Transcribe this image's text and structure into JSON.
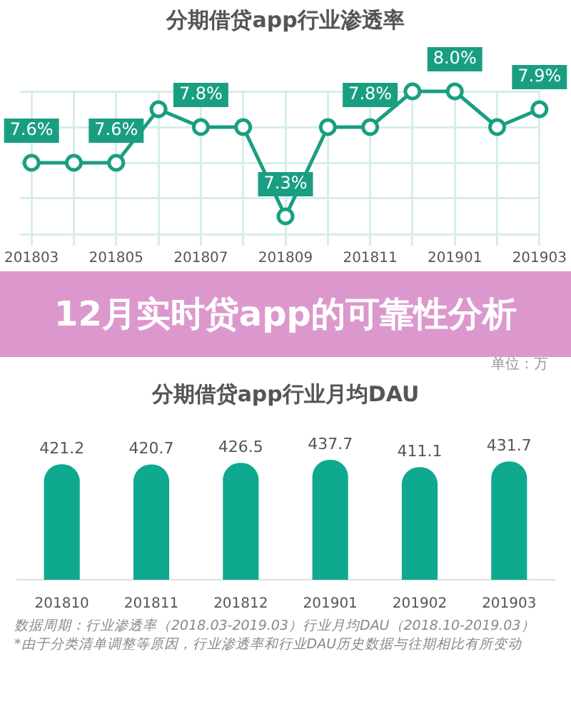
{
  "chart_data": [
    {
      "type": "line",
      "title": "分期借贷app行业渗透率",
      "categories": [
        "201803",
        null,
        "201805",
        null,
        "201807",
        null,
        "201809",
        null,
        "201811",
        null,
        "201901",
        null,
        "201903"
      ],
      "series": [
        {
          "color": "#1a9e82",
          "values": [
            7.6,
            7.6,
            7.6,
            7.9,
            7.8,
            7.8,
            7.3,
            7.8,
            7.8,
            8.0,
            8.0,
            7.8,
            7.9
          ],
          "value_labels": [
            "7.6%",
            null,
            "7.6%",
            null,
            "7.8%",
            null,
            "7.3%",
            null,
            "7.8%",
            null,
            "8.0%",
            null,
            "7.9%"
          ]
        }
      ],
      "grid": true,
      "marker": "circle",
      "tick_labels": "x"
    },
    {
      "type": "other",
      "title": "12月实时贷app的可靠性分析"
    },
    {
      "type": "bar",
      "title": "分期借贷app行业月均DAU",
      "categories": [
        "201810",
        "201811",
        "201812",
        "201901",
        "201902",
        "201903"
      ],
      "values": [
        421.2,
        420.7,
        426.5,
        437.7,
        411.1,
        431.7
      ],
      "color": "#0ea98e",
      "data_labels": true,
      "tick_labels": "x",
      "annotations": [
        "单位：万",
        "数据周期：行业渗透率（2018.03-2019.03）行业月均DAU（2018.10-2019.03）",
        "*由于分类清单调整等原因，行业渗透率和行业DAU历史数据与往期相比有所变动"
      ]
    }
  ]
}
